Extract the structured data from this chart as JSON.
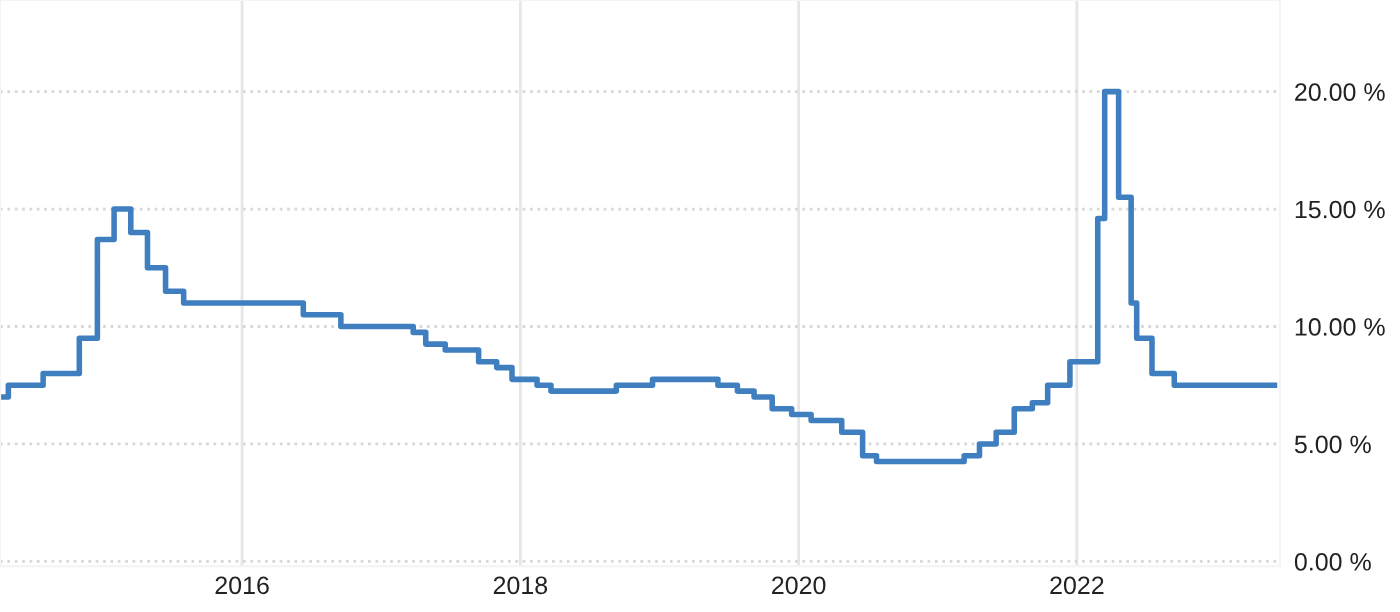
{
  "chart_data": {
    "type": "step",
    "x": [
      2014.26,
      2014.32,
      2014.57,
      2014.83,
      2014.96,
      2015.08,
      2015.2,
      2015.32,
      2015.45,
      2015.58,
      2016.44,
      2016.71,
      2017.23,
      2017.32,
      2017.46,
      2017.7,
      2017.83,
      2017.94,
      2018.12,
      2018.22,
      2018.69,
      2018.95,
      2019.42,
      2019.56,
      2019.68,
      2019.81,
      2019.95,
      2020.09,
      2020.31,
      2020.46,
      2020.56,
      2021.19,
      2021.3,
      2021.42,
      2021.55,
      2021.68,
      2021.79,
      2021.95,
      2022.15,
      2022.2,
      2022.3,
      2022.39,
      2022.43,
      2022.54,
      2022.7,
      2023.42
    ],
    "series": [
      {
        "color": "#3f7fbf",
        "values": [
          7.0,
          7.5,
          8.0,
          9.5,
          13.7,
          15.0,
          14.0,
          12.5,
          11.5,
          11.0,
          10.5,
          10.0,
          9.75,
          9.25,
          9.0,
          8.5,
          8.25,
          7.75,
          7.5,
          7.25,
          7.5,
          7.75,
          7.5,
          7.25,
          7.0,
          6.5,
          6.25,
          6.0,
          5.5,
          4.5,
          4.25,
          4.5,
          5.0,
          5.5,
          6.5,
          6.75,
          7.5,
          8.5,
          14.6,
          20.0,
          15.5,
          11.0,
          9.5,
          8.0,
          7.5,
          7.5
        ]
      }
    ],
    "xlim": [
      2014.26,
      2023.46
    ],
    "xticks": [
      2016,
      2018,
      2020,
      2022
    ],
    "ylim": [
      -0.2,
      23.9
    ],
    "yticks": [
      {
        "value": 0,
        "label": "0.00 %"
      },
      {
        "value": 5,
        "label": "5.00 %"
      },
      {
        "value": 10,
        "label": "10.00 %"
      },
      {
        "value": 15,
        "label": "15.00 %"
      },
      {
        "value": 20,
        "label": "20.00 %"
      }
    ],
    "grid": true,
    "marker": "none",
    "line_style": "solid"
  }
}
